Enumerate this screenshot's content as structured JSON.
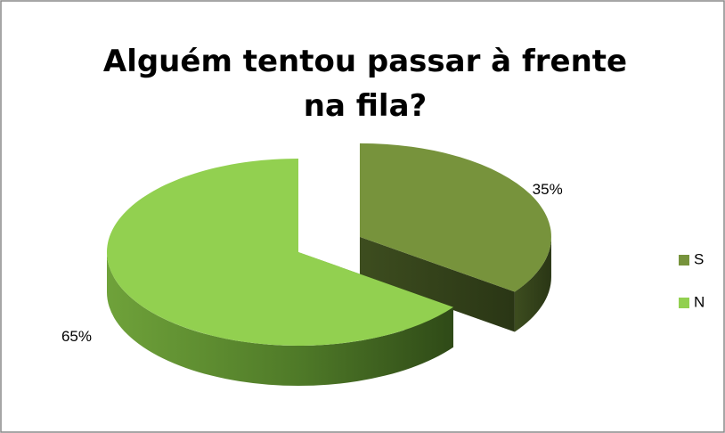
{
  "chart_data": {
    "type": "pie",
    "title": "Alguém tentou passar à frente na fila?",
    "categories": [
      "S",
      "N"
    ],
    "values": [
      35,
      65
    ],
    "value_labels": [
      "35%",
      "65%"
    ],
    "colors": [
      "#77933c",
      "#92d050"
    ],
    "legend": "right"
  }
}
